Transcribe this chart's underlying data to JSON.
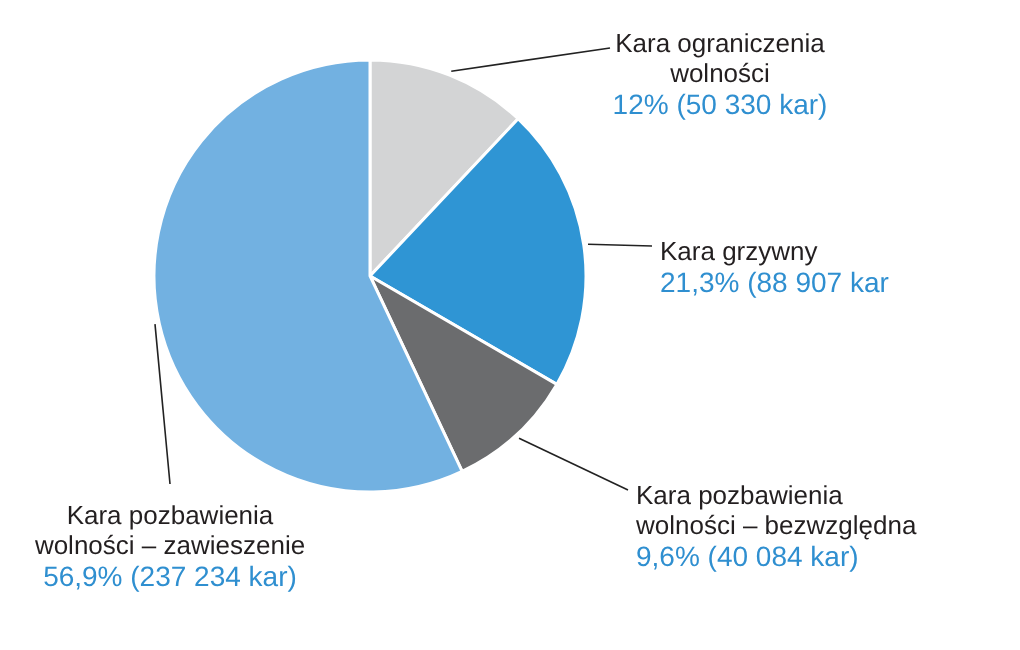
{
  "chart_data": {
    "type": "pie",
    "categories": [
      "Kara ograniczenia wolności",
      "Kara grzywny",
      "Kara pozbawienia wolności – bezwzględna",
      "Kara pozbawienia wolności – zawieszenie"
    ],
    "values": [
      12,
      21.3,
      9.6,
      56.9
    ],
    "value_labels": [
      "12% (50 330 kar)",
      "21,3% (88 907 kar",
      "9,6% (40 084 kar)",
      "56,9% (237 234 kar)"
    ],
    "colors": [
      "#d3d4d5",
      "#2f95d4",
      "#6b6c6e",
      "#72b1e1"
    ],
    "legend": false
  }
}
